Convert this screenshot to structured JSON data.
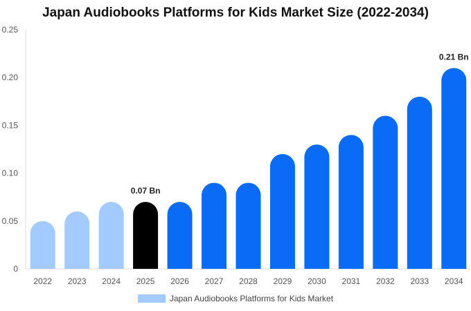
{
  "chart_data": {
    "type": "bar",
    "title": "Japan Audiobooks Platforms for Kids Market Size (2022-2034)",
    "categories": [
      "2022",
      "2023",
      "2024",
      "2025",
      "2026",
      "2027",
      "2028",
      "2029",
      "2030",
      "2031",
      "2032",
      "2033",
      "2034"
    ],
    "series": [
      {
        "name": "Japan Audiobooks Platforms for Kids Market",
        "values": [
          0.05,
          0.06,
          0.07,
          0.07,
          0.07,
          0.09,
          0.09,
          0.12,
          0.13,
          0.14,
          0.16,
          0.18,
          0.21
        ]
      }
    ],
    "ylim": [
      0,
      0.25
    ],
    "yticks": [
      "0",
      "0.05",
      "0.10",
      "0.15",
      "0.20",
      "0.25"
    ],
    "data_labels": [
      {
        "category": "2025",
        "text": "0.07 Bn"
      },
      {
        "category": "2034",
        "text": "0.21 Bn"
      }
    ],
    "bar_colors": {
      "historical": "#a3cbff",
      "base_year": "#000000",
      "forecast": "#0a6cf5"
    },
    "historical_categories": [
      "2022",
      "2023",
      "2024"
    ],
    "base_year_category": "2025",
    "grid": false,
    "legend_position": "bottom-center"
  }
}
